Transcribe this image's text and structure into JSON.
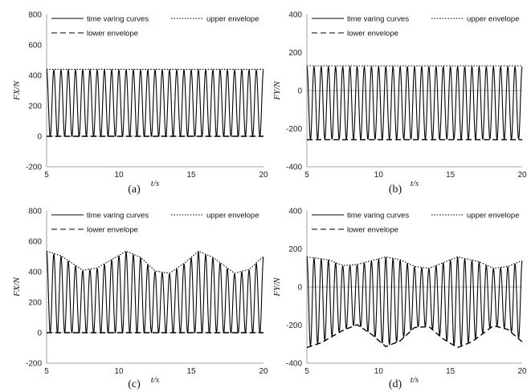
{
  "chart_data": [
    {
      "type": "line",
      "caption": "(a)",
      "xlabel": "t/s",
      "ylabel": "FX/N",
      "xlim": [
        5,
        20
      ],
      "ylim": [
        -200,
        800
      ],
      "xticks": [
        "5",
        "10",
        "15",
        "20"
      ],
      "yticks": [
        "-200",
        "0",
        "200",
        "400",
        "600",
        "800"
      ],
      "legend": [
        "time varing curves",
        "upper envelope",
        "lower envelope"
      ],
      "series": [
        {
          "name": "time varing curves",
          "style": "solid",
          "form": "oscillation",
          "frequency_hz": 2.0,
          "upper_envelope": [
            [
              5,
              435
            ],
            [
              20,
              435
            ]
          ],
          "lower_envelope": [
            [
              5,
              0
            ],
            [
              20,
              0
            ]
          ]
        },
        {
          "name": "upper envelope",
          "style": "dotted",
          "points": [
            [
              5,
              440
            ],
            [
              20,
              440
            ]
          ]
        },
        {
          "name": "lower envelope",
          "style": "dashed",
          "points": [
            [
              5,
              0
            ],
            [
              20,
              0
            ]
          ]
        }
      ]
    },
    {
      "type": "line",
      "caption": "(b)",
      "xlabel": "t/s",
      "ylabel": "FY/N",
      "xlim": [
        5,
        20
      ],
      "ylim": [
        -400,
        400
      ],
      "xticks": [
        "5",
        "10",
        "15",
        "20"
      ],
      "yticks": [
        "-400",
        "-200",
        "0",
        "200",
        "400"
      ],
      "legend": [
        "time varing curves",
        "upper envelope",
        "lower envelope"
      ],
      "series": [
        {
          "name": "time varing curves",
          "style": "solid",
          "form": "oscillation",
          "frequency_hz": 2.0,
          "upper_envelope": [
            [
              5,
              125
            ],
            [
              20,
              125
            ]
          ],
          "lower_envelope": [
            [
              5,
              -255
            ],
            [
              20,
              -255
            ]
          ]
        },
        {
          "name": "upper envelope",
          "style": "dotted",
          "points": [
            [
              5,
              130
            ],
            [
              20,
              130
            ]
          ]
        },
        {
          "name": "lower envelope",
          "style": "dashed",
          "points": [
            [
              5,
              -258
            ],
            [
              20,
              -258
            ]
          ]
        }
      ]
    },
    {
      "type": "line",
      "caption": "(c)",
      "xlabel": "t/s",
      "ylabel": "FX/N",
      "xlim": [
        5,
        20
      ],
      "ylim": [
        -200,
        800
      ],
      "xticks": [
        "5",
        "10",
        "15",
        "20"
      ],
      "yticks": [
        "-200",
        "0",
        "200",
        "400",
        "600",
        "800"
      ],
      "legend": [
        "time varing curves",
        "upper envelope",
        "lower envelope"
      ],
      "series": [
        {
          "name": "time varing curves",
          "style": "solid",
          "form": "oscillation",
          "frequency_hz": 2.0,
          "upper_envelope": [
            [
              5,
              530
            ],
            [
              6,
              500
            ],
            [
              7.5,
              405
            ],
            [
              8.5,
              420
            ],
            [
              10.5,
              530
            ],
            [
              11.5,
              490
            ],
            [
              12.5,
              400
            ],
            [
              13.5,
              385
            ],
            [
              14.5,
              450
            ],
            [
              15.5,
              530
            ],
            [
              16.5,
              490
            ],
            [
              18,
              385
            ],
            [
              19,
              410
            ],
            [
              20,
              495
            ]
          ],
          "lower_envelope": [
            [
              5,
              0
            ],
            [
              20,
              0
            ]
          ]
        },
        {
          "name": "upper envelope",
          "style": "dotted",
          "points": [
            [
              5,
              535
            ],
            [
              6,
              505
            ],
            [
              7.5,
              410
            ],
            [
              8.5,
              425
            ],
            [
              10.5,
              535
            ],
            [
              11.5,
              495
            ],
            [
              12.5,
              405
            ],
            [
              13.5,
              390
            ],
            [
              14.5,
              455
            ],
            [
              15.5,
              535
            ],
            [
              16.5,
              495
            ],
            [
              18,
              390
            ],
            [
              19,
              415
            ],
            [
              20,
              500
            ]
          ]
        },
        {
          "name": "lower envelope",
          "style": "dashed",
          "points": [
            [
              5,
              0
            ],
            [
              20,
              0
            ]
          ]
        }
      ]
    },
    {
      "type": "line",
      "caption": "(d)",
      "xlabel": "t/s",
      "ylabel": "FY/N",
      "xlim": [
        5,
        20
      ],
      "ylim": [
        -400,
        400
      ],
      "xticks": [
        "5",
        "10",
        "15",
        "20"
      ],
      "yticks": [
        "-400",
        "-200",
        "0",
        "200",
        "400"
      ],
      "legend": [
        "time varing curves",
        "upper envelope",
        "lower envelope"
      ],
      "series": [
        {
          "name": "time varing curves",
          "style": "solid",
          "form": "oscillation",
          "frequency_hz": 2.0,
          "upper_envelope": [
            [
              5,
              155
            ],
            [
              6.5,
              140
            ],
            [
              7.5,
              110
            ],
            [
              8.5,
              115
            ],
            [
              10.5,
              155
            ],
            [
              11.5,
              140
            ],
            [
              12.5,
              105
            ],
            [
              13.5,
              95
            ],
            [
              14.5,
              125
            ],
            [
              15.5,
              155
            ],
            [
              17,
              130
            ],
            [
              18,
              95
            ],
            [
              19,
              105
            ],
            [
              20,
              135
            ]
          ],
          "lower_envelope": [
            [
              5,
              -315
            ],
            [
              6,
              -290
            ],
            [
              7.5,
              -225
            ],
            [
              8.5,
              -195
            ],
            [
              9.5,
              -245
            ],
            [
              10.5,
              -310
            ],
            [
              11.5,
              -280
            ],
            [
              12.5,
              -210
            ],
            [
              13.5,
              -205
            ],
            [
              14.5,
              -270
            ],
            [
              15.5,
              -315
            ],
            [
              16.5,
              -285
            ],
            [
              18,
              -200
            ],
            [
              19,
              -220
            ],
            [
              20,
              -285
            ]
          ]
        },
        {
          "name": "upper envelope",
          "style": "dotted",
          "points": [
            [
              5,
              158
            ],
            [
              6.5,
              143
            ],
            [
              7.5,
              113
            ],
            [
              8.5,
              118
            ],
            [
              10.5,
              158
            ],
            [
              11.5,
              143
            ],
            [
              12.5,
              108
            ],
            [
              13.5,
              98
            ],
            [
              14.5,
              128
            ],
            [
              15.5,
              158
            ],
            [
              17,
              133
            ],
            [
              18,
              98
            ],
            [
              19,
              108
            ],
            [
              20,
              138
            ]
          ]
        },
        {
          "name": "lower envelope",
          "style": "dashed",
          "points": [
            [
              5,
              -318
            ],
            [
              6,
              -293
            ],
            [
              7.5,
              -228
            ],
            [
              8.5,
              -198
            ],
            [
              9.5,
              -248
            ],
            [
              10.5,
              -313
            ],
            [
              11.5,
              -283
            ],
            [
              12.5,
              -213
            ],
            [
              13.5,
              -208
            ],
            [
              14.5,
              -273
            ],
            [
              15.5,
              -318
            ],
            [
              16.5,
              -288
            ],
            [
              18,
              -203
            ],
            [
              19,
              -223
            ],
            [
              20,
              -288
            ]
          ]
        }
      ]
    }
  ]
}
